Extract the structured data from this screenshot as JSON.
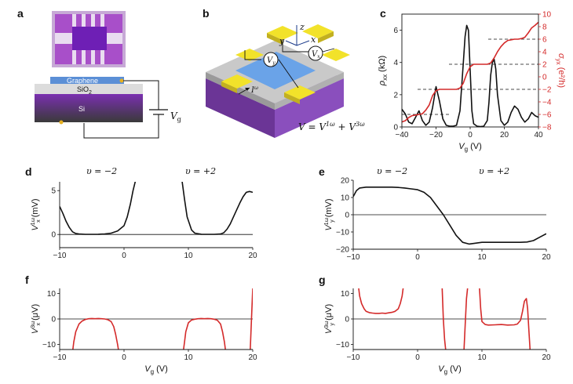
{
  "panels": {
    "a": {
      "label": "a",
      "graphene_label": "Graphene",
      "oxide_label": "SiO",
      "oxide_sub": "2",
      "substrate_label": "Si",
      "gate_label": "V",
      "gate_sub": "g"
    },
    "b": {
      "label": "b",
      "axis_z": "z",
      "axis_y": "y",
      "axis_x": "x",
      "current_label": "I",
      "current_sup": "ω",
      "volt_label": "V",
      "volt_sub_left": "y",
      "volt_sub_right": "x",
      "equation": "V = V",
      "eq_sup1": "1ω",
      "eq_plus": " + V",
      "eq_sup2": "3ω"
    },
    "c": {
      "label": "c"
    },
    "d": {
      "label": "d",
      "nu_left": "υ = −2",
      "nu_right": "υ = +2"
    },
    "e": {
      "label": "e",
      "nu_left": "υ = −2",
      "nu_right": "υ = +2"
    },
    "f": {
      "label": "f"
    },
    "g": {
      "label": "g"
    }
  },
  "colors": {
    "black_trace": "#111111",
    "red_trace": "#d42a2a",
    "yellow_pad": "#f2e22a",
    "purple": "#7a3fa8",
    "blue_graphene": "#6aa3e8"
  },
  "chart_data": [
    {
      "id": "c",
      "type": "line",
      "xlabel": "V",
      "xlabel_sub": "g",
      "xlabel_unit": " (V)",
      "ylabel": "ρ",
      "ylabel_sub": "xx",
      "ylabel_unit": " (kΩ)",
      "y2label": "σ",
      "y2label_sub": "yx",
      "y2label_unit": " (e²/h)",
      "xlim": [
        -40,
        40
      ],
      "ylim": [
        0,
        7
      ],
      "y2lim": [
        -8,
        10
      ],
      "xticks": [
        -40,
        -20,
        0,
        20,
        40
      ],
      "yticks": [
        0,
        2,
        4,
        6
      ],
      "y2ticks": [
        -8,
        -6,
        -4,
        -2,
        0,
        2,
        4,
        6,
        8,
        10
      ],
      "dashed_levels_y2": [
        -6,
        -2,
        2,
        6
      ],
      "series": [
        {
          "axis": "left",
          "color": "#111111",
          "x": [
            -40,
            -38,
            -36,
            -34,
            -32,
            -30,
            -28,
            -26,
            -24,
            -22,
            -20,
            -18,
            -16,
            -14,
            -12,
            -10,
            -8,
            -6,
            -4,
            -3,
            -2,
            -1,
            0,
            1,
            2,
            4,
            6,
            8,
            10,
            11,
            12,
            13,
            14,
            15,
            16,
            18,
            20,
            22,
            24,
            26,
            28,
            30,
            32,
            34,
            36,
            38,
            40
          ],
          "y": [
            1.1,
            0.8,
            0.3,
            0.2,
            0.6,
            1.0,
            0.4,
            0.1,
            0.3,
            1.2,
            2.5,
            1.6,
            0.5,
            0.1,
            0.05,
            0.05,
            0.1,
            1.0,
            4.0,
            5.6,
            6.3,
            6.0,
            3.5,
            1.0,
            0.2,
            0.05,
            0.02,
            0.05,
            0.4,
            1.5,
            3.2,
            4.0,
            4.2,
            3.6,
            2.0,
            0.4,
            0.1,
            0.3,
            0.9,
            1.3,
            1.1,
            0.6,
            0.3,
            0.5,
            0.9,
            0.7,
            0.6
          ]
        },
        {
          "axis": "right",
          "color": "#d42a2a",
          "x": [
            -40,
            -38,
            -36,
            -34,
            -32,
            -30,
            -28,
            -26,
            -24,
            -22,
            -20,
            -18,
            -16,
            -14,
            -12,
            -10,
            -8,
            -6,
            -4,
            -2,
            0,
            2,
            4,
            6,
            8,
            10,
            12,
            14,
            16,
            18,
            20,
            22,
            24,
            26,
            28,
            30,
            32,
            34,
            36,
            38,
            40
          ],
          "y": [
            -7.2,
            -7.0,
            -6.5,
            -6.2,
            -6.1,
            -6.0,
            -5.9,
            -5.3,
            -4.5,
            -3.0,
            -2.2,
            -2.0,
            -2.0,
            -2.0,
            -2.0,
            -2.0,
            -2.0,
            -1.8,
            -1.0,
            0.5,
            1.6,
            2.0,
            2.0,
            2.0,
            2.0,
            2.0,
            2.2,
            3.0,
            4.0,
            4.8,
            5.4,
            5.8,
            5.9,
            6.0,
            6.0,
            6.1,
            6.3,
            7.0,
            7.8,
            8.2,
            8.7
          ]
        }
      ]
    },
    {
      "id": "d",
      "type": "line",
      "xlabel": "",
      "ylabel": "V",
      "ylabel_sub": "x",
      "ylabel_sup": "1ω",
      "ylabel_unit": " (mV)",
      "xlim": [
        -10,
        20
      ],
      "ylim": [
        -1.5,
        6
      ],
      "xticks": [
        -10,
        0,
        10,
        20
      ],
      "yticks": [
        0,
        5
      ],
      "series": [
        {
          "color": "#111111",
          "x": [
            -10,
            -9.5,
            -9,
            -8.5,
            -8,
            -7.5,
            -7,
            -6,
            -5,
            -4,
            -3,
            -2,
            -1,
            -0.5,
            0,
            0.5,
            1,
            1.4,
            1.8,
            9,
            9.4,
            9.8,
            10.5,
            11,
            12,
            13,
            14,
            15,
            15.5,
            16,
            16.5,
            17,
            17.5,
            18,
            18.5,
            19,
            19.5,
            20
          ],
          "y": [
            3.2,
            2.4,
            1.5,
            0.8,
            0.3,
            0.12,
            0.05,
            0.02,
            0.02,
            0.03,
            0.05,
            0.15,
            0.4,
            0.7,
            1.0,
            2.0,
            3.5,
            5.0,
            6.2,
            6.2,
            4.0,
            2.0,
            0.5,
            0.15,
            0.03,
            0.02,
            0.02,
            0.05,
            0.2,
            0.6,
            1.2,
            2.0,
            2.8,
            3.6,
            4.3,
            4.8,
            4.9,
            4.8
          ]
        }
      ]
    },
    {
      "id": "e",
      "type": "line",
      "xlabel": "",
      "ylabel": "V",
      "ylabel_sub": "y",
      "ylabel_sup": "1ω",
      "ylabel_unit": " (mV)",
      "xlim": [
        -10,
        20
      ],
      "ylim": [
        -20,
        20
      ],
      "xticks": [
        -10,
        0,
        10,
        20
      ],
      "yticks": [
        -20,
        -10,
        0,
        10,
        20
      ],
      "series": [
        {
          "color": "#111111",
          "x": [
            -10,
            -9.5,
            -9,
            -8,
            -7,
            -6,
            -5,
            -4,
            -3,
            -2,
            -1,
            0,
            1,
            2,
            3,
            4,
            5,
            6,
            7,
            8,
            9,
            10,
            11,
            12,
            13,
            14,
            15,
            16,
            17,
            18,
            19,
            20
          ],
          "y": [
            10.5,
            14,
            15.5,
            16,
            16,
            16,
            16,
            16,
            15.8,
            15.5,
            15,
            14.5,
            13,
            10,
            5,
            0,
            -6,
            -12,
            -16,
            -17,
            -16.5,
            -16,
            -16,
            -16,
            -16,
            -16,
            -16,
            -16,
            -15.8,
            -15,
            -13,
            -11
          ]
        }
      ]
    },
    {
      "id": "f",
      "type": "line",
      "xlabel": "V",
      "xlabel_sub": "g",
      "xlabel_unit": " (V)",
      "ylabel": "V",
      "ylabel_sub": "x",
      "ylabel_sup": "3ω",
      "ylabel_unit": " (μV)",
      "xlim": [
        -10,
        20
      ],
      "ylim": [
        -12,
        12
      ],
      "xticks": [
        -10,
        0,
        10,
        20
      ],
      "yticks": [
        -10,
        0,
        10
      ],
      "series": [
        {
          "color": "#d42a2a",
          "x": [
            -8,
            -7.8,
            -7.5,
            -7,
            -6.5,
            -6,
            -5.5,
            -5,
            -4.5,
            -4,
            -3.5,
            -3,
            -2.5,
            -2,
            -1.6,
            -1.3,
            -1,
            -0.8
          ],
          "y": [
            -13,
            -9,
            -5,
            -2,
            -0.8,
            -0.2,
            0.1,
            0.2,
            0.1,
            0.2,
            0.1,
            0.0,
            -0.3,
            -1.0,
            -3,
            -6,
            -10,
            -13
          ]
        },
        {
          "color": "#d42a2a",
          "x": [
            9.2,
            9.4,
            9.6,
            10,
            10.5,
            11,
            11.5,
            12,
            12.5,
            13,
            13.5,
            14,
            14.5,
            15,
            15.3,
            15.6,
            15.8
          ],
          "y": [
            -13,
            -9,
            -5,
            -1.5,
            -0.4,
            -0.1,
            0.1,
            0.2,
            0.1,
            0.2,
            0.1,
            -0.1,
            -0.5,
            -2,
            -5,
            -9,
            -13
          ]
        },
        {
          "color": "#d42a2a",
          "x": [
            19.6,
            19.8,
            20
          ],
          "y": [
            -13,
            0,
            12
          ]
        }
      ]
    },
    {
      "id": "g",
      "type": "line",
      "xlabel": "V",
      "xlabel_sub": "g",
      "xlabel_unit": " (V)",
      "ylabel": "V",
      "ylabel_sub": "y",
      "ylabel_sup": "3ω",
      "ylabel_unit": " (μV)",
      "xlim": [
        -10,
        20
      ],
      "ylim": [
        -12,
        12
      ],
      "xticks": [
        -10,
        0,
        10,
        20
      ],
      "yticks": [
        -10,
        0,
        10
      ],
      "series": [
        {
          "color": "#d42a2a",
          "x": [
            -9.2,
            -9,
            -8.7,
            -8.3,
            -8,
            -7.5,
            -7,
            -6.5,
            -6,
            -5.5,
            -5,
            -4.5,
            -4,
            -3.5,
            -3,
            -2.7,
            -2.4,
            -2.2
          ],
          "y": [
            13,
            9,
            6,
            4,
            3,
            2.5,
            2.3,
            2.2,
            2.2,
            2.3,
            2.2,
            2.4,
            2.6,
            3,
            4,
            6,
            9,
            13
          ]
        },
        {
          "color": "#d42a2a",
          "x": [
            3.8,
            4.0,
            4.2,
            4.4
          ],
          "y": [
            13,
            0,
            -8,
            -13
          ]
        },
        {
          "color": "#d42a2a",
          "x": [
            7.2,
            7.4,
            7.6,
            7.8
          ],
          "y": [
            -13,
            -2,
            8,
            13
          ]
        },
        {
          "color": "#d42a2a",
          "x": [
            9.6,
            9.8,
            10,
            10.5,
            11,
            12,
            13,
            14,
            15,
            15.5,
            16,
            16.3,
            16.6,
            16.9,
            17.1,
            17.3,
            17.5
          ],
          "y": [
            13,
            4,
            -1,
            -2.2,
            -2.4,
            -2.3,
            -2.2,
            -2.4,
            -2.3,
            -2,
            -0.5,
            3,
            7,
            8,
            4,
            -5,
            -13
          ]
        }
      ]
    }
  ]
}
